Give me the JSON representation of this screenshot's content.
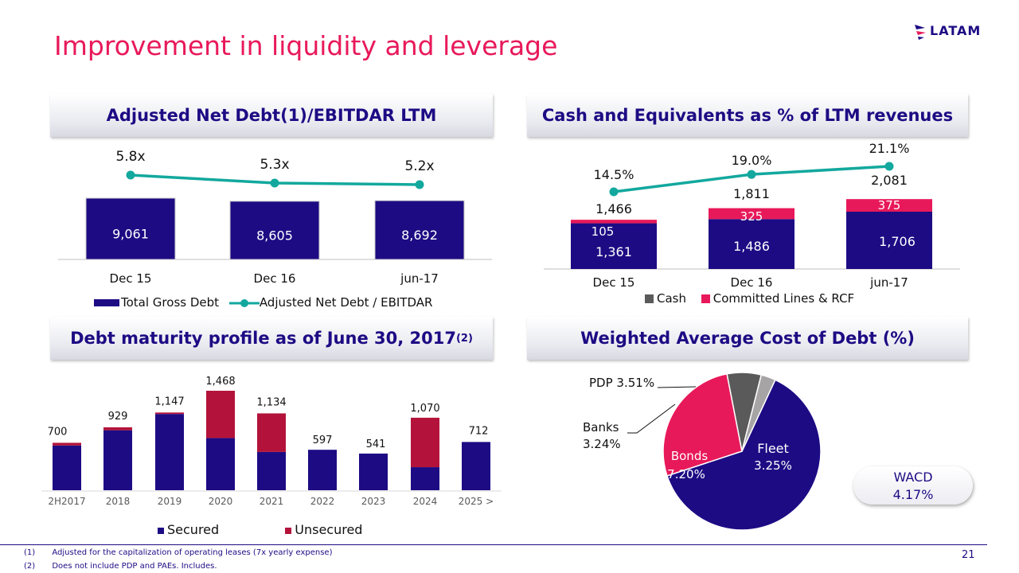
{
  "page": {
    "title": "Improvement in liquidity and leverage",
    "logo_text": "LATAM",
    "page_number": "21",
    "footnotes": [
      {
        "num": "(1)",
        "text": "Adjusted for the capitalization of operating leases (7x yearly expense)"
      },
      {
        "num": "(2)",
        "text": "Does not include PDP and PAEs. Includes."
      }
    ]
  },
  "colors": {
    "navy": "#1d0b84",
    "pink": "#e8195a",
    "teal": "#13a89e",
    "crimson": "#b3133a",
    "gray": "#5a5a5a",
    "lightgray": "#a7a4a6"
  },
  "panels": {
    "leverage": {
      "title": "Adjusted Net Debt(1)/EBITDAR LTM"
    },
    "cash": {
      "title": "Cash and Equivalents as % of LTM revenues"
    },
    "maturity": {
      "title": "Debt maturity profile as of June 30, 2017",
      "title_sup": "(2)"
    },
    "cost": {
      "title": "Weighted Average Cost of Debt (%)"
    }
  },
  "chart_data": [
    {
      "id": "leverage",
      "type": "bar",
      "title": "Adjusted Net Debt(1)/EBITDAR LTM",
      "categories": [
        "Dec 15",
        "Dec 16",
        "jun-17"
      ],
      "series": [
        {
          "name": "Total Gross Debt",
          "kind": "bar",
          "values": [
            9061,
            8605,
            8692
          ],
          "labels": [
            "9,061",
            "8,605",
            "8,692"
          ]
        },
        {
          "name": "Adjusted Net Debt / EBITDAR",
          "kind": "line",
          "values": [
            5.8,
            5.3,
            5.2
          ],
          "labels": [
            "5.8x",
            "5.3x",
            "5.2x"
          ]
        }
      ],
      "legend": [
        "Total Gross Debt",
        "Adjusted Net Debt / EBITDAR"
      ]
    },
    {
      "id": "cash",
      "type": "bar",
      "title": "Cash and Equivalents as % of LTM revenues",
      "categories": [
        "Dec 15",
        "Dec 16",
        "jun-17"
      ],
      "series": [
        {
          "name": "Cash",
          "kind": "stacked-bar",
          "values": [
            1361,
            1486,
            1706
          ],
          "labels": [
            "1,361",
            "1,486",
            "1,706"
          ]
        },
        {
          "name": "Committed Lines & RCF",
          "kind": "stacked-bar",
          "values": [
            105,
            325,
            375
          ],
          "labels": [
            "105",
            "325",
            "375"
          ]
        },
        {
          "name": "Cash as % of LTM revenues",
          "kind": "line",
          "values": [
            14.5,
            19.0,
            21.1
          ],
          "labels": [
            "14.5%",
            "19.0%",
            "21.1%"
          ]
        }
      ],
      "totals": [
        "1,466",
        "1,811",
        "2,081"
      ],
      "legend": [
        "Cash",
        "Committed Lines & RCF"
      ]
    },
    {
      "id": "maturity",
      "type": "bar",
      "title": "Debt maturity profile as of June 30, 2017",
      "categories": [
        "2H2017",
        "2018",
        "2019",
        "2020",
        "2021",
        "2022",
        "2023",
        "2024",
        "2025 >"
      ],
      "series": [
        {
          "name": "Secured",
          "values": [
            660,
            885,
            1125,
            770,
            565,
            597,
            541,
            340,
            712
          ]
        },
        {
          "name": "Unsecured",
          "values": [
            40,
            44,
            22,
            698,
            569,
            0,
            0,
            730,
            0
          ]
        }
      ],
      "totals": [
        "700",
        "929",
        "1,147",
        "1,468",
        "1,134",
        "597",
        "541",
        "1,070",
        "712"
      ],
      "legend": [
        "Secured",
        "Unsecured"
      ]
    },
    {
      "id": "cost",
      "type": "pie",
      "title": "Weighted Average Cost of Debt (%)",
      "slices": [
        {
          "name": "Fleet",
          "share": 63,
          "label": "Fleet",
          "value_label": "3.25%"
        },
        {
          "name": "Bonds",
          "share": 27,
          "label": "Bonds",
          "value_label": "7.20%"
        },
        {
          "name": "Banks",
          "share": 7,
          "label": "Banks",
          "value_label": "3.24%"
        },
        {
          "name": "PDP",
          "share": 3,
          "label": "PDP",
          "value_label": "3.51%"
        }
      ],
      "wacd": {
        "label": "WACD",
        "value": "4.17%"
      }
    }
  ]
}
